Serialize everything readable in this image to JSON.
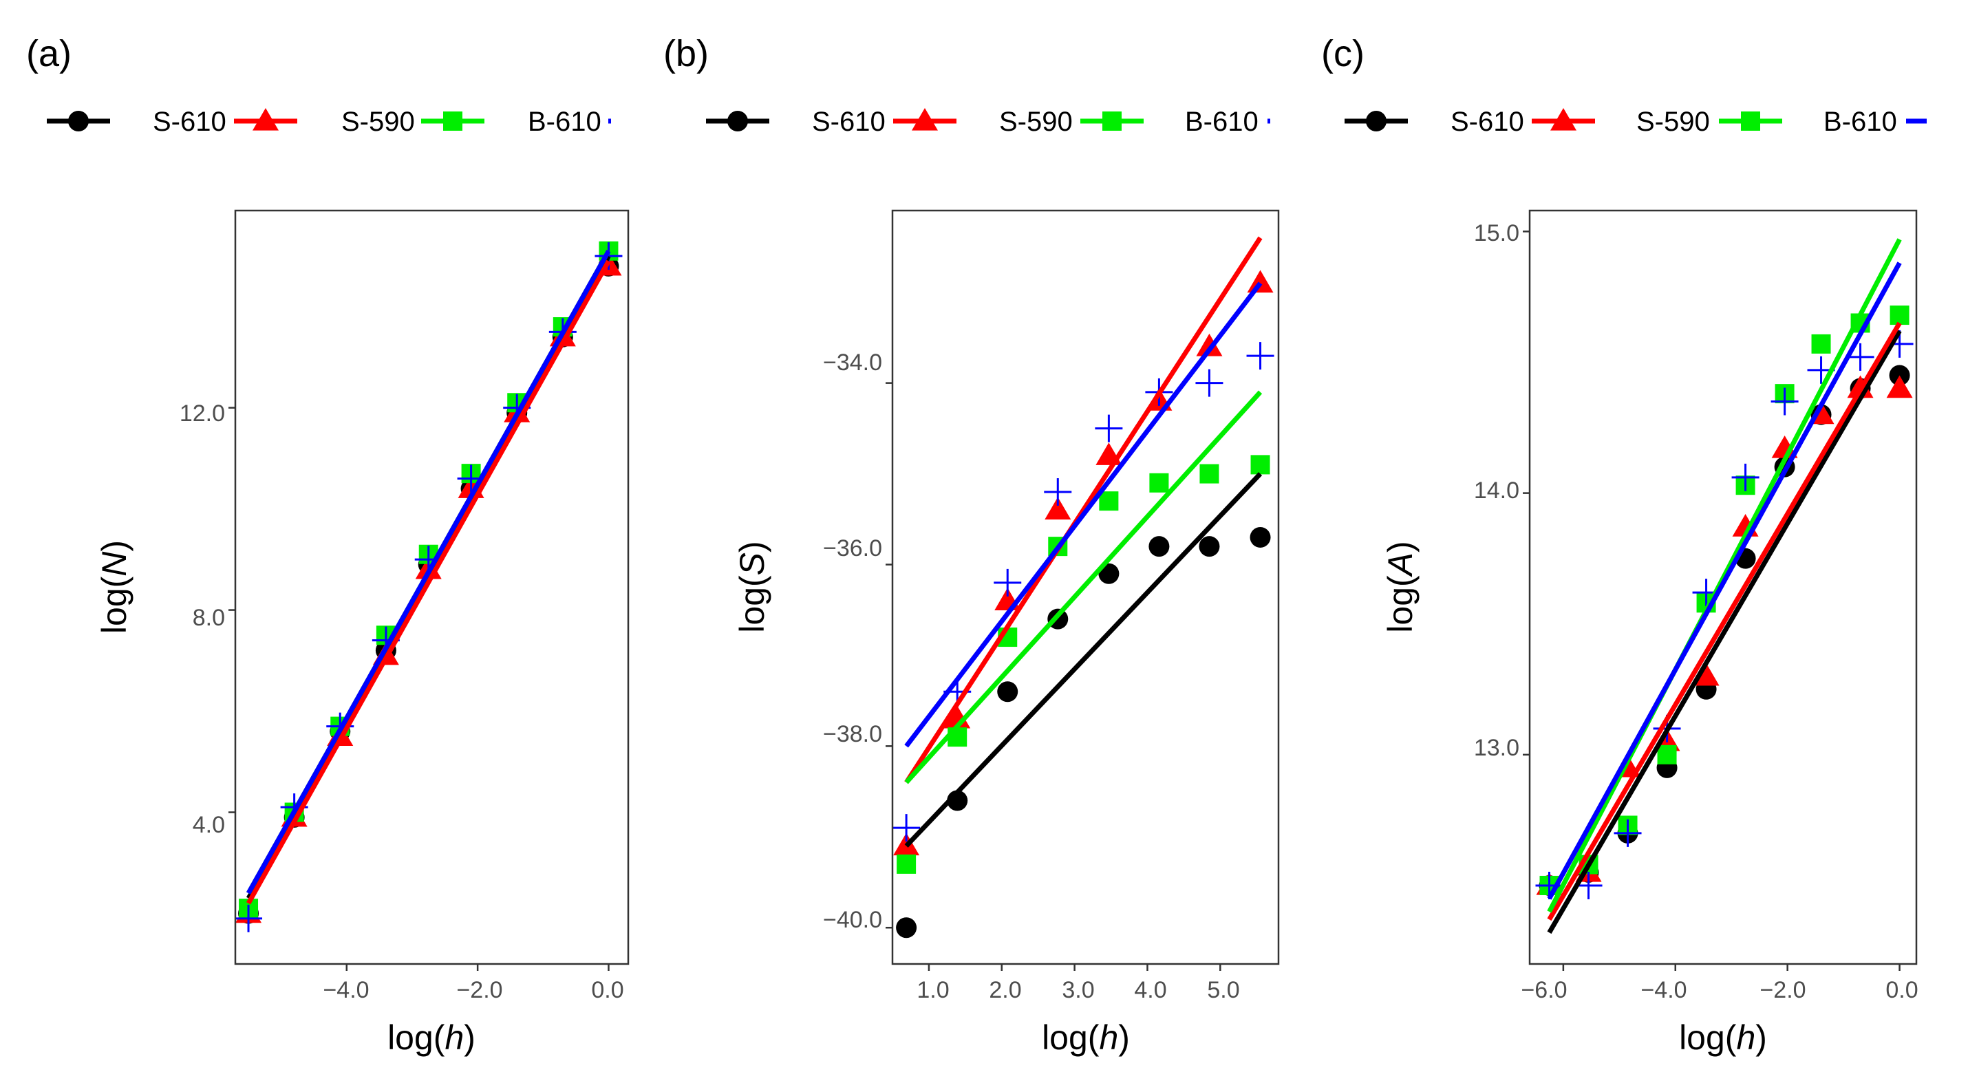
{
  "chart_data": [
    {
      "panel": "(a)",
      "type": "scatter",
      "title": "",
      "xlabel": {
        "fn": "log(",
        "var": "h",
        "close": ")"
      },
      "ylabel": {
        "fn": "log(",
        "var": "N",
        "close": ")"
      },
      "xlim": [
        -5.7,
        0.3
      ],
      "ylim": [
        1.0,
        15.9
      ],
      "xticks": [
        -4.0,
        -2.0,
        0.0
      ],
      "xtick_labels": [
        "-4.0",
        "-2.0",
        "0.0"
      ],
      "yticks": [
        4.0,
        8.0,
        12.0
      ],
      "ytick_labels": [
        "4.0",
        "8.0",
        "12.0"
      ],
      "legend_labels": [
        "S-610",
        "S-590",
        "B-610"
      ],
      "series": [
        {
          "name": "S-610",
          "color": "#000000",
          "marker": "circle",
          "x": [
            -5.5,
            -4.8,
            -4.1,
            -3.4,
            -2.75,
            -2.1,
            -1.4,
            -0.7,
            0.0
          ],
          "y": [
            2.0,
            3.9,
            5.6,
            7.2,
            8.9,
            10.4,
            11.9,
            13.4,
            14.8
          ],
          "fit": [
            [
              -5.5,
              2.3
            ],
            [
              0.0,
              15.0
            ]
          ]
        },
        {
          "name": "S-590",
          "color": "#ff0000",
          "marker": "triangle",
          "x": [
            -5.5,
            -4.8,
            -4.1,
            -3.4,
            -2.75,
            -2.1,
            -1.4,
            -0.7,
            0.0
          ],
          "y": [
            2.0,
            3.9,
            5.5,
            7.1,
            8.8,
            10.4,
            11.9,
            13.4,
            14.8
          ],
          "fit": [
            [
              -5.5,
              2.2
            ],
            [
              0.0,
              14.9
            ]
          ]
        },
        {
          "name": "B-610",
          "color": "#00ee00",
          "marker": "square",
          "x": [
            -5.5,
            -4.8,
            -4.1,
            -3.4,
            -2.75,
            -2.1,
            -1.4,
            -0.7,
            0.0
          ],
          "y": [
            2.1,
            4.0,
            5.7,
            7.5,
            9.1,
            10.7,
            12.1,
            13.6,
            15.1
          ],
          "fit": [
            [
              -5.5,
              2.4
            ],
            [
              0.0,
              15.1
            ]
          ]
        },
        {
          "name": "",
          "color": "#0000ff",
          "marker": "plus",
          "x": [
            -5.5,
            -4.8,
            -4.1,
            -3.4,
            -2.75,
            -2.1,
            -1.4,
            -0.7,
            0.0
          ],
          "y": [
            1.9,
            4.1,
            5.7,
            7.4,
            9.0,
            10.6,
            12.0,
            13.5,
            15.0
          ],
          "fit": [
            [
              -5.5,
              2.4
            ],
            [
              0.0,
              15.1
            ]
          ]
        }
      ]
    },
    {
      "panel": "(b)",
      "type": "scatter",
      "title": "",
      "xlabel": {
        "fn": "log(",
        "var": "h",
        "close": ")"
      },
      "ylabel": {
        "fn": "log(",
        "var": "S",
        "close": ")"
      },
      "xlim": [
        0.5,
        5.8
      ],
      "ylim": [
        -40.4,
        -32.1
      ],
      "xticks": [
        1.0,
        2.0,
        3.0,
        4.0,
        5.0
      ],
      "xtick_labels": [
        "1.0",
        "2.0",
        "3.0",
        "4.0",
        "5.0"
      ],
      "yticks": [
        -40.0,
        -38.0,
        -36.0,
        -34.0
      ],
      "ytick_labels": [
        "-40.0",
        "-38.0",
        "-36.0",
        "-34.0"
      ],
      "legend_labels": [
        "S-610",
        "S-590",
        "B-610"
      ],
      "series": [
        {
          "name": "S-610",
          "color": "#000000",
          "marker": "circle",
          "x": [
            0.69,
            1.39,
            2.08,
            2.77,
            3.47,
            4.16,
            4.85,
            5.55
          ],
          "y": [
            -40.0,
            -38.6,
            -37.4,
            -36.6,
            -36.1,
            -35.8,
            -35.8,
            -35.7
          ],
          "fit": [
            [
              0.69,
              -39.1
            ],
            [
              5.55,
              -35.0
            ]
          ]
        },
        {
          "name": "S-590",
          "color": "#ff0000",
          "marker": "triangle",
          "x": [
            0.69,
            1.39,
            2.08,
            2.77,
            3.47,
            4.16,
            4.85,
            5.55
          ],
          "y": [
            -39.1,
            -37.7,
            -36.4,
            -35.4,
            -34.8,
            -34.2,
            -33.6,
            -32.9
          ],
          "fit": [
            [
              0.69,
              -38.4
            ],
            [
              5.55,
              -32.4
            ]
          ]
        },
        {
          "name": "B-610",
          "color": "#00ee00",
          "marker": "square",
          "x": [
            0.69,
            1.39,
            2.08,
            2.77,
            3.47,
            4.16,
            4.85,
            5.55
          ],
          "y": [
            -39.3,
            -37.9,
            -36.8,
            -35.8,
            -35.3,
            -35.1,
            -35.0,
            -34.9
          ],
          "fit": [
            [
              0.69,
              -38.4
            ],
            [
              5.55,
              -34.1
            ]
          ]
        },
        {
          "name": "",
          "color": "#0000ff",
          "marker": "plus",
          "x": [
            0.69,
            1.39,
            2.08,
            2.77,
            3.47,
            4.16,
            4.85,
            5.55
          ],
          "y": [
            -38.9,
            -37.4,
            -36.2,
            -35.2,
            -34.5,
            -34.1,
            -34.0,
            -33.7
          ],
          "fit": [
            [
              0.69,
              -38.0
            ],
            [
              5.55,
              -32.9
            ]
          ]
        }
      ]
    },
    {
      "panel": "(c)",
      "type": "scatter",
      "title": "",
      "xlabel": {
        "fn": "log(",
        "var": "h",
        "close": ")"
      },
      "ylabel": {
        "fn": "log(",
        "var": "A",
        "close": ")"
      },
      "xlim": [
        -6.6,
        0.3
      ],
      "ylim": [
        12.2,
        15.08
      ],
      "xticks": [
        -6.0,
        -4.0,
        -2.0,
        0.0
      ],
      "xtick_labels": [
        "-6.0",
        "-4.0",
        "-2.0",
        "0.0"
      ],
      "yticks": [
        13.0,
        14.0,
        15.0
      ],
      "ytick_labels": [
        "13.0",
        "14.0",
        "15.0"
      ],
      "legend_labels": [
        "S-610",
        "S-590",
        "B-610"
      ],
      "series": [
        {
          "name": "S-610",
          "color": "#000000",
          "marker": "circle",
          "x": [
            -6.25,
            -5.55,
            -4.85,
            -4.15,
            -3.45,
            -2.75,
            -2.05,
            -1.4,
            -0.7,
            0.0
          ],
          "y": [
            12.5,
            12.55,
            12.7,
            12.95,
            13.25,
            13.75,
            14.1,
            14.3,
            14.4,
            14.45
          ],
          "fit": [
            [
              -6.25,
              12.32
            ],
            [
              0.0,
              14.62
            ]
          ]
        },
        {
          "name": "S-590",
          "color": "#ff0000",
          "marker": "triangle",
          "x": [
            -6.25,
            -5.55,
            -4.85,
            -4.15,
            -3.45,
            -2.75,
            -2.05,
            -1.4,
            -0.7,
            0.0
          ],
          "y": [
            12.5,
            12.55,
            12.95,
            13.05,
            13.3,
            13.87,
            14.17,
            14.3,
            14.4,
            14.4
          ],
          "fit": [
            [
              -6.25,
              12.37
            ],
            [
              0.0,
              14.65
            ]
          ]
        },
        {
          "name": "B-610",
          "color": "#00ee00",
          "marker": "square",
          "x": [
            -6.25,
            -5.55,
            -4.85,
            -4.15,
            -3.45,
            -2.75,
            -2.05,
            -1.4,
            -0.7,
            0.0
          ],
          "y": [
            12.5,
            12.58,
            12.73,
            13.0,
            13.58,
            14.03,
            14.38,
            14.57,
            14.65,
            14.68
          ],
          "fit": [
            [
              -6.25,
              12.4
            ],
            [
              0.0,
              14.97
            ]
          ]
        },
        {
          "name": "",
          "color": "#0000ff",
          "marker": "plus",
          "x": [
            -6.25,
            -5.55,
            -4.85,
            -4.15,
            -3.45,
            -2.75,
            -2.05,
            -1.4,
            -0.7,
            0.0
          ],
          "y": [
            12.5,
            12.5,
            12.7,
            13.1,
            13.62,
            14.06,
            14.35,
            14.47,
            14.52,
            14.57
          ],
          "fit": [
            [
              -6.25,
              12.45
            ],
            [
              0.0,
              14.88
            ]
          ]
        }
      ]
    }
  ]
}
